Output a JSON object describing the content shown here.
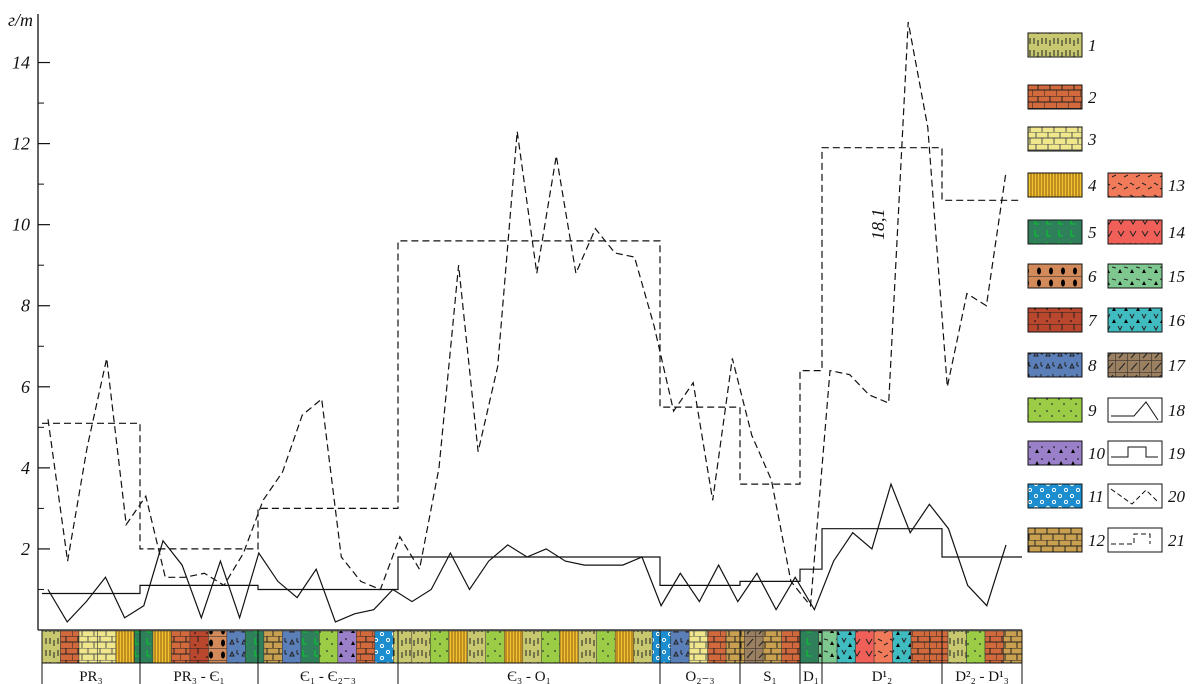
{
  "chart_data": {
    "type": "line",
    "ylabel": "г/т",
    "ylim": [
      0,
      15
    ],
    "y_ticks": [
      "2",
      "4",
      "6",
      "8",
      "10",
      "12",
      "14"
    ],
    "annotation": "18,1",
    "series": [
      {
        "style": "dashed",
        "values": [
          5.2,
          1.7,
          4.5,
          6.7,
          2.6,
          3.3,
          1.3,
          1.3,
          1.4,
          1.1,
          1.9,
          3.2,
          3.9,
          5.3,
          5.7,
          1.8,
          1.2,
          1.0,
          2.3,
          1.5,
          4.0,
          9.0,
          4.4,
          6.5,
          12.3,
          8.8,
          11.7,
          8.8,
          9.9,
          9.3,
          9.2,
          7.5,
          5.4,
          6.1,
          3.2,
          6.7,
          4.8,
          3.7,
          1.2,
          0.6,
          6.4,
          6.3,
          5.8,
          5.6,
          15.0,
          12.4,
          6.0,
          8.3,
          8.0,
          11.3
        ]
      },
      {
        "style": "solid",
        "values": [
          1.0,
          0.2,
          0.7,
          1.3,
          0.3,
          0.6,
          2.2,
          1.6,
          0.3,
          1.7,
          0.3,
          1.9,
          1.2,
          0.8,
          1.5,
          0.2,
          0.4,
          0.5,
          1.0,
          0.7,
          1.0,
          1.9,
          1.0,
          1.7,
          2.1,
          1.8,
          2.0,
          1.7,
          1.6,
          1.6,
          1.6,
          1.8,
          0.6,
          1.4,
          0.7,
          1.6,
          0.7,
          1.4,
          0.5,
          1.3,
          0.5,
          1.7,
          2.4,
          2.0,
          3.6,
          2.4,
          3.1,
          2.5,
          1.1,
          0.6,
          2.1
        ]
      },
      {
        "style": "dashed-step",
        "steps": [
          {
            "period": "PR₃",
            "value": 5.1
          },
          {
            "period": "PR₃ - Є₁",
            "value": 2.0
          },
          {
            "period": "Є₁ - Є₂₋₃",
            "value": 3.0
          },
          {
            "period": "Є₃ - O₁",
            "value": 9.6
          },
          {
            "period": "O₂₋₃",
            "value": 5.5
          },
          {
            "period": "S₁",
            "value": 3.6
          },
          {
            "period": "D₁",
            "value": 6.4
          },
          {
            "period": "D¹₂",
            "value": 11.9
          },
          {
            "period": "D²₂ - D¹₃",
            "value": 10.6
          }
        ]
      },
      {
        "style": "solid-step",
        "steps": [
          {
            "period": "PR₃",
            "value": 0.9
          },
          {
            "period": "PR₃ - Є₁",
            "value": 1.1
          },
          {
            "period": "Є₁ - Є₂₋₃",
            "value": 1.0
          },
          {
            "period": "Є₃ - O₁",
            "value": 1.8
          },
          {
            "period": "O₂₋₃",
            "value": 1.1
          },
          {
            "period": "S₁",
            "value": 1.2
          },
          {
            "period": "D₁",
            "value": 1.5
          },
          {
            "period": "D¹₂",
            "value": 2.5
          },
          {
            "period": "D²₂ - D¹₃",
            "value": 1.8
          }
        ]
      }
    ],
    "periods": [
      "PR₃",
      "PR₃ - Є₁",
      "Є₁ - Є₂₋₃",
      "Є₃ - O₁",
      "O₂₋₃",
      "S₁",
      "D₁",
      "D¹₂",
      "D²₂ - D¹₃"
    ],
    "column_lithology": [
      1,
      2,
      3,
      3,
      4,
      5,
      4,
      2,
      7,
      6,
      8,
      5,
      12,
      8,
      5,
      9,
      10,
      2,
      11,
      1,
      1,
      9,
      4,
      1,
      9,
      4,
      1,
      9,
      4,
      1,
      9,
      4,
      1,
      11,
      8,
      3,
      2,
      12,
      17,
      12,
      2,
      5,
      15,
      16,
      14,
      13,
      16,
      2,
      2,
      1,
      9,
      2,
      12
    ],
    "legend": [
      {
        "num": "1",
        "color": "#c8c870",
        "pattern": "ticks-arch"
      },
      {
        "num": "2",
        "color": "#d2693c",
        "pattern": "brick"
      },
      {
        "num": "3",
        "color": "#f0e68c",
        "pattern": "brick-light"
      },
      {
        "num": "4",
        "color": "#f2c230",
        "pattern": "vertical"
      },
      {
        "num": "5",
        "color": "#2f7f5a",
        "pattern": "L-marks"
      },
      {
        "num": "6",
        "color": "#d28a5a",
        "pattern": "brick-black-marks"
      },
      {
        "num": "7",
        "color": "#b8472e",
        "pattern": "brick-dots"
      },
      {
        "num": "8",
        "color": "#5b7fb8",
        "pattern": "triangles-L"
      },
      {
        "num": "9",
        "color": "#9acd45",
        "pattern": "dots"
      },
      {
        "num": "10",
        "color": "#9a80c8",
        "pattern": "triangles-black"
      },
      {
        "num": "11",
        "color": "#1c8ed0",
        "pattern": "circles"
      },
      {
        "num": "12",
        "color": "#c9a050",
        "pattern": "brick-ticks"
      },
      {
        "num": "13",
        "color": "#f07a5a",
        "pattern": "dashes"
      },
      {
        "num": "14",
        "color": "#f06058",
        "pattern": "v-marks"
      },
      {
        "num": "15",
        "color": "#7ec890",
        "pattern": "triangles-dashes"
      },
      {
        "num": "16",
        "color": "#40bcc0",
        "pattern": "v-triangles"
      },
      {
        "num": "17",
        "color": "#9a8060",
        "pattern": "diagonal-ticks"
      },
      {
        "num": "18",
        "color": "#ffffff",
        "pattern": "line-solid"
      },
      {
        "num": "19",
        "color": "#ffffff",
        "pattern": "step-solid"
      },
      {
        "num": "20",
        "color": "#ffffff",
        "pattern": "line-dashed"
      },
      {
        "num": "21",
        "color": "#ffffff",
        "pattern": "step-dashed"
      }
    ]
  }
}
